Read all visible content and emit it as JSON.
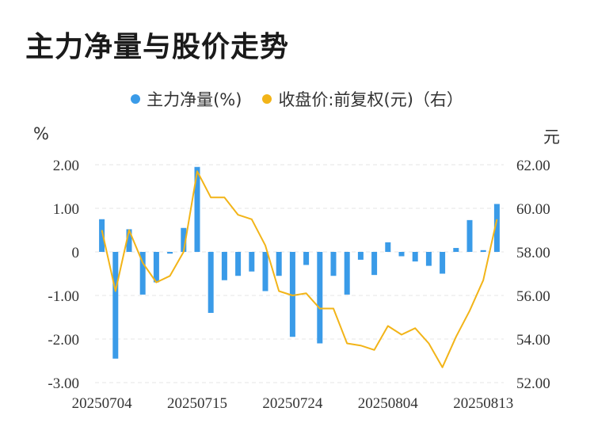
{
  "title": "主力净量与股价走势",
  "legend": {
    "net_label": "主力净量(%)",
    "price_label": "收盘价:前复权(元)（右）"
  },
  "axes": {
    "left_unit": "%",
    "right_unit": "元",
    "left_ticks": [
      "2.00",
      "1.00",
      "0",
      "-1.00",
      "-2.00",
      "-3.00"
    ],
    "right_ticks": [
      "62.00",
      "60.00",
      "58.00",
      "56.00",
      "54.00",
      "52.00"
    ],
    "x_ticks": [
      "20250704",
      "20250715",
      "20250724",
      "20250804",
      "20250813"
    ]
  },
  "colors": {
    "bar": "#3a9be8",
    "line": "#f2b418",
    "grid": "#e6e6e6"
  },
  "chart_data": {
    "type": "bar",
    "title": "主力净量与股价走势",
    "categories": [
      "20250704",
      "20250707",
      "20250708",
      "20250709",
      "20250710",
      "20250711",
      "20250714",
      "20250715",
      "20250716",
      "20250717",
      "20250718",
      "20250721",
      "20250722",
      "20250723",
      "20250724",
      "20250725",
      "20250728",
      "20250729",
      "20250730",
      "20250731",
      "20250801",
      "20250804",
      "20250805",
      "20250806",
      "20250807",
      "20250808",
      "20250811",
      "20250812",
      "20250813",
      "20250814"
    ],
    "x_tick_labels": [
      "20250704",
      "20250715",
      "20250724",
      "20250804",
      "20250813"
    ],
    "series": [
      {
        "name": "主力净量(%)",
        "axis": "left",
        "type": "bar",
        "values": [
          0.75,
          -2.45,
          0.52,
          -0.98,
          -0.7,
          -0.04,
          0.55,
          1.95,
          -1.4,
          -0.65,
          -0.55,
          -0.45,
          -0.9,
          -0.55,
          -1.95,
          -0.3,
          -2.1,
          -0.55,
          -0.98,
          -0.18,
          -0.53,
          0.22,
          -0.1,
          -0.22,
          -0.32,
          -0.5,
          0.09,
          0.73,
          0.04,
          1.1
        ]
      },
      {
        "name": "收盘价:前复权(元)（右）",
        "axis": "right",
        "type": "line",
        "values": [
          59.0,
          56.2,
          59.0,
          57.5,
          56.6,
          56.9,
          58.0,
          61.7,
          60.5,
          60.5,
          59.7,
          59.5,
          58.3,
          56.2,
          56.0,
          56.1,
          55.4,
          55.4,
          53.8,
          53.7,
          53.5,
          54.6,
          54.2,
          54.5,
          53.8,
          52.7,
          54.1,
          55.3,
          56.7,
          59.5
        ]
      }
    ],
    "ylim_left": [
      -3,
      2
    ],
    "ylim_right": [
      52,
      62
    ],
    "ylabel_left": "%",
    "ylabel_right": "元",
    "grid": true,
    "legend_position": "top-center"
  }
}
